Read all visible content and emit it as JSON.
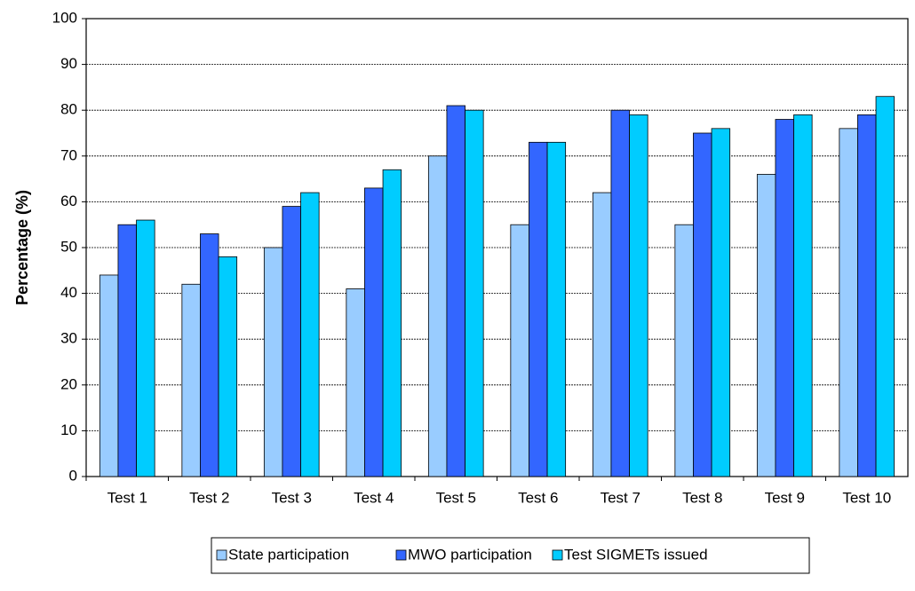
{
  "chart_data": {
    "type": "bar",
    "y_label": "Percentage (%)",
    "categories": [
      "Test 1",
      "Test 2",
      "Test 3",
      "Test 4",
      "Test 5",
      "Test 6",
      "Test 7",
      "Test 8",
      "Test 9",
      "Test 10"
    ],
    "series": [
      {
        "name": "State participation",
        "color": "#99ccff",
        "values": [
          44,
          42,
          50,
          41,
          70,
          55,
          62,
          55,
          66,
          76
        ]
      },
      {
        "name": "MWO participation",
        "color": "#3366ff",
        "values": [
          55,
          53,
          59,
          63,
          81,
          73,
          80,
          75,
          78,
          79
        ]
      },
      {
        "name": "Test SIGMETs issued",
        "color": "#00ccff",
        "values": [
          56,
          48,
          62,
          67,
          80,
          73,
          79,
          76,
          79,
          83
        ]
      }
    ],
    "ylim": [
      0,
      100
    ],
    "yticks": [
      0,
      10,
      20,
      30,
      40,
      50,
      60,
      70,
      80,
      90,
      100
    ],
    "grid": true,
    "legend": "bottom"
  }
}
